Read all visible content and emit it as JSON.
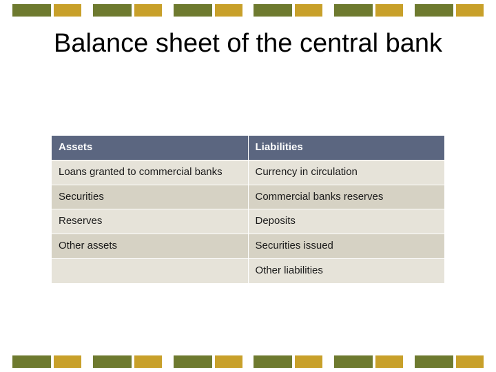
{
  "title": "Balance sheet of the central bank",
  "palette": {
    "olive": "#6e7a2f",
    "gold": "#c8a02a",
    "slate": "#5b6680",
    "header_bg": "#5b6680",
    "header_text": "#ffffff",
    "row_light": "#e6e3d9",
    "row_dark": "#d6d2c4",
    "text": "#1a1a1a"
  },
  "stripes": {
    "count": 6,
    "pattern": [
      "olive",
      "gold"
    ]
  },
  "table": {
    "type": "table",
    "columns": [
      "Assets",
      "Liabilities"
    ],
    "rows": [
      [
        "Loans granted to commercial banks",
        "Currency in circulation"
      ],
      [
        "Securities",
        "Commercial banks reserves"
      ],
      [
        "Reserves",
        "Deposits"
      ],
      [
        "Other assets",
        "Securities issued"
      ],
      [
        "",
        "Other liabilities"
      ]
    ],
    "header_bg": "#5b6680",
    "header_text": "#ffffff",
    "row_colors": [
      "#e6e3d9",
      "#d6d2c4"
    ],
    "font_size": 15
  }
}
